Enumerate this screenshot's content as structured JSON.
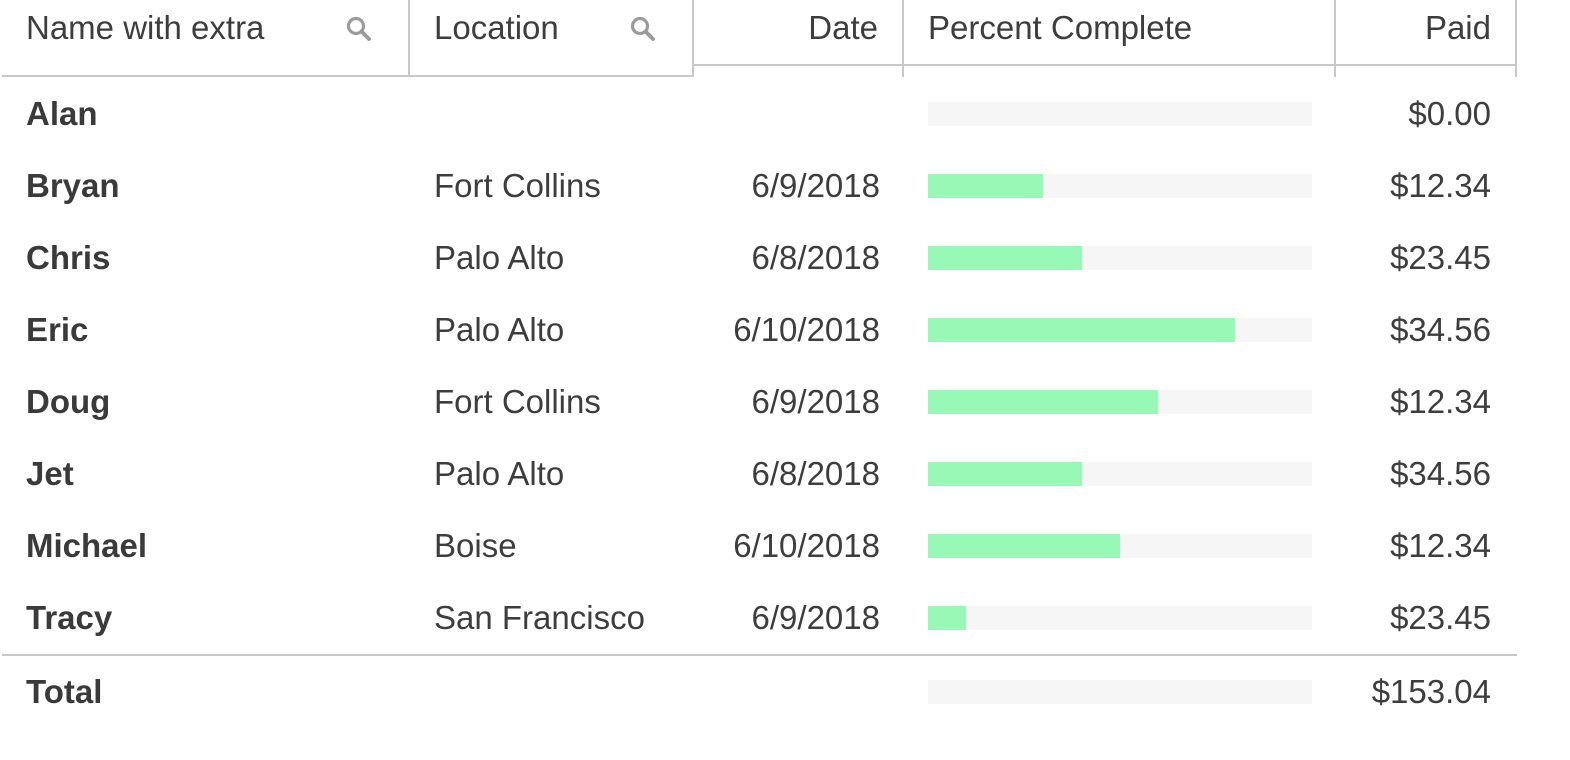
{
  "columns": {
    "name": "Name with extra",
    "location": "Location",
    "date": "Date",
    "percent": "Percent Complete",
    "paid": "Paid"
  },
  "icons": {
    "name_filter": "search-icon",
    "location_filter": "search-icon"
  },
  "colors": {
    "bar_fill": "#98f9b7",
    "bar_track": "#f6f6f6",
    "border": "#c8c8c8",
    "text": "#3d3d3d"
  },
  "rows": [
    {
      "name": "Alan",
      "location": "",
      "date": "",
      "percent_complete": 0,
      "paid": "$0.00"
    },
    {
      "name": "Bryan",
      "location": "Fort Collins",
      "date": "6/9/2018",
      "percent_complete": 0.3,
      "paid": "$12.34"
    },
    {
      "name": "Chris",
      "location": "Palo Alto",
      "date": "6/8/2018",
      "percent_complete": 0.4,
      "paid": "$23.45"
    },
    {
      "name": "Eric",
      "location": "Palo Alto",
      "date": "6/10/2018",
      "percent_complete": 0.8,
      "paid": "$34.56"
    },
    {
      "name": "Doug",
      "location": "Fort Collins",
      "date": "6/9/2018",
      "percent_complete": 0.6,
      "paid": "$12.34"
    },
    {
      "name": "Jet",
      "location": "Palo Alto",
      "date": "6/8/2018",
      "percent_complete": 0.4,
      "paid": "$34.56"
    },
    {
      "name": "Michael",
      "location": "Boise",
      "date": "6/10/2018",
      "percent_complete": 0.5,
      "paid": "$12.34"
    },
    {
      "name": "Tracy",
      "location": "San Francisco",
      "date": "6/9/2018",
      "percent_complete": 0.1,
      "paid": "$23.45"
    }
  ],
  "footer": {
    "label": "Total",
    "percent_complete": 0,
    "paid": "$153.04"
  }
}
